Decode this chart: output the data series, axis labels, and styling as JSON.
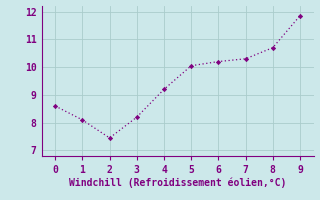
{
  "x": [
    0,
    1,
    2,
    3,
    4,
    5,
    6,
    7,
    8,
    9
  ],
  "y": [
    8.6,
    8.1,
    7.45,
    8.2,
    9.2,
    10.05,
    10.2,
    10.3,
    10.7,
    11.85
  ],
  "line_color": "#800080",
  "marker_color": "#800080",
  "background_color": "#cce8ea",
  "grid_color": "#aacccc",
  "xlabel": "Windchill (Refroidissement éolien,°C)",
  "xlabel_color": "#800080",
  "tick_color": "#800080",
  "spine_color": "#800080",
  "xlim": [
    -0.5,
    9.5
  ],
  "ylim": [
    6.8,
    12.2
  ],
  "xticks": [
    0,
    1,
    2,
    3,
    4,
    5,
    6,
    7,
    8,
    9
  ],
  "yticks": [
    7,
    8,
    9,
    10,
    11,
    12
  ],
  "xlabel_fontsize": 7.0,
  "tick_fontsize": 7.0
}
